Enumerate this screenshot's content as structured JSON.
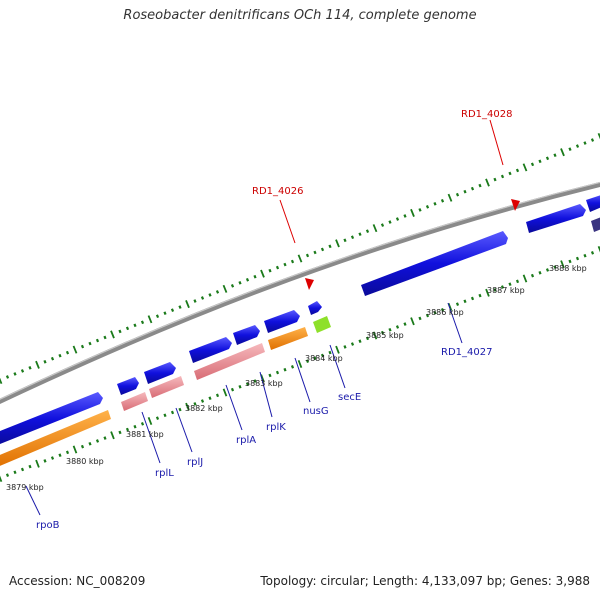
{
  "title": "Roseobacter denitrificans OCh 114, complete genome",
  "footer": {
    "accession": "Accession: NC_008209",
    "summary": "Topology: circular; Length: 4,133,097 bp; Genes: 3,988"
  },
  "colors": {
    "forward_cds": "#1010dd",
    "reverse_cds": "#3a3480",
    "rna_pink": "#e8878f",
    "orange": "#ff8c00",
    "lime": "#8ee02a",
    "backbone": "#8a8a8a",
    "ticks": "#1a7a1a",
    "marker": "#dd0000",
    "gene_label": "#1a1aaa",
    "ncrna_label": "#cc0000"
  },
  "kbp_ticks": [
    "3879 kbp",
    "3880 kbp",
    "3881 kbp",
    "3882 kbp",
    "3883 kbp",
    "3884 kbp",
    "3885 kbp",
    "3886 kbp",
    "3887 kbp",
    "3888 kbp"
  ],
  "gene_labels": [
    "rpoB",
    "rplL",
    "rplJ",
    "rplA",
    "rplK",
    "nusG",
    "secE",
    "RD1_4027"
  ],
  "ncrna_labels": [
    "RD1_4026",
    "RD1_4028"
  ]
}
